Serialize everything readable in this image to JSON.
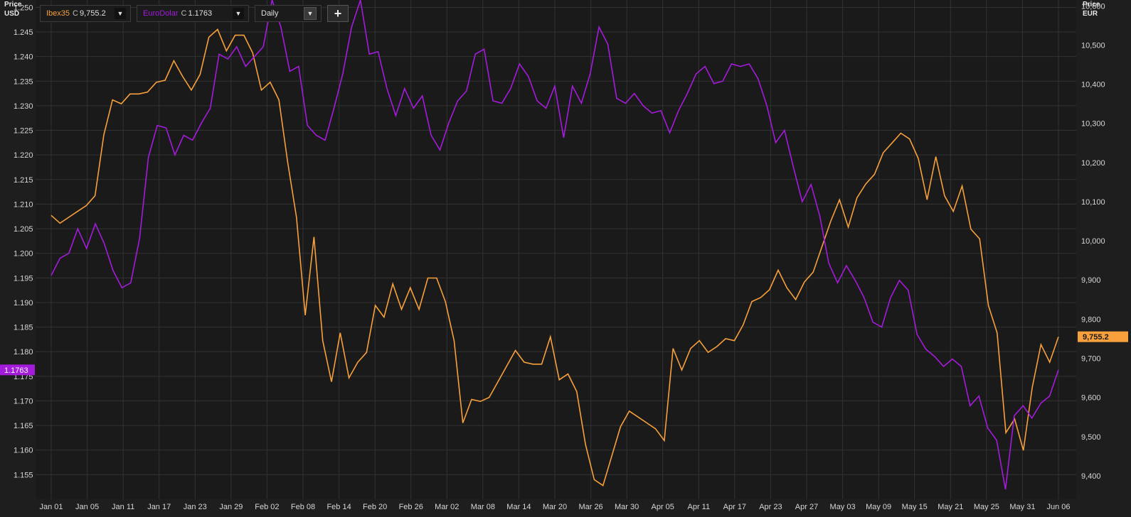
{
  "toolbar": {
    "series1": {
      "symbol": "Ibex35",
      "close_prefix": "C",
      "close_value": "9,755.2"
    },
    "series2": {
      "symbol": "EuroDolar",
      "close_prefix": "C",
      "close_value": "1.1763"
    },
    "period": "Daily",
    "add_label": "+"
  },
  "colors": {
    "ibex": "#f7a03c",
    "eurodolar": "#a41bdc",
    "background": "#1e1e1e",
    "grid": "#333333"
  },
  "chart_data": {
    "type": "line",
    "left_axis": {
      "title_line1": "Price",
      "title_line2": "USD",
      "ylim": [
        1.15,
        1.2515
      ],
      "ticks": [
        "1.250",
        "1.245",
        "1.240",
        "1.235",
        "1.230",
        "1.225",
        "1.220",
        "1.215",
        "1.210",
        "1.205",
        "1.200",
        "1.195",
        "1.190",
        "1.185",
        "1.180",
        "1.175",
        "1.170",
        "1.165",
        "1.160",
        "1.155"
      ]
    },
    "right_axis": {
      "title_line1": "Price",
      "title_line2": "EUR",
      "ylim": [
        9340,
        10615
      ],
      "ticks": [
        "10,600",
        "10,500",
        "10,400",
        "10,300",
        "10,200",
        "10,100",
        "10,000",
        "9,900",
        "9,800",
        "9,700",
        "9,600",
        "9,500",
        "9,400"
      ]
    },
    "x_ticks": [
      "Jan 01",
      "Jan 05",
      "Jan 11",
      "Jan 17",
      "Jan 23",
      "Jan 29",
      "Feb 02",
      "Feb 08",
      "Feb 14",
      "Feb 20",
      "Feb 26",
      "Mar 02",
      "Mar 08",
      "Mar 14",
      "Mar 20",
      "Mar 26",
      "Mar 30",
      "Apr 05",
      "Apr 11",
      "Apr 17",
      "Apr 23",
      "Apr 27",
      "May 03",
      "May 09",
      "May 15",
      "May 21",
      "May 25",
      "May 31",
      "Jun 06"
    ],
    "grid": true,
    "series": [
      {
        "name": "Ibex35",
        "axis": "right",
        "values": [
          10065,
          10045,
          10060,
          10075,
          10090,
          10115,
          10270,
          10360,
          10350,
          10375,
          10375,
          10380,
          10405,
          10410,
          10460,
          10420,
          10385,
          10425,
          10520,
          10540,
          10485,
          10525,
          10525,
          10480,
          10385,
          10405,
          10360,
          10200,
          10060,
          9810,
          10010,
          9745,
          9640,
          9765,
          9650,
          9690,
          9715,
          9835,
          9805,
          9890,
          9825,
          9880,
          9825,
          9905,
          9905,
          9845,
          9745,
          9535,
          9595,
          9590,
          9600,
          9640,
          9680,
          9720,
          9690,
          9685,
          9685,
          9755,
          9645,
          9660,
          9615,
          9480,
          9390,
          9375,
          9450,
          9525,
          9565,
          9550,
          9535,
          9520,
          9490,
          9725,
          9670,
          9725,
          9745,
          9715,
          9730,
          9750,
          9745,
          9785,
          9845,
          9855,
          9875,
          9925,
          9880,
          9850,
          9895,
          9920,
          9985,
          10050,
          10105,
          10035,
          10110,
          10145,
          10170,
          10225,
          10250,
          10275,
          10260,
          10210,
          10105,
          10215,
          10115,
          10075,
          10140,
          10030,
          10005,
          9835,
          9765,
          9510,
          9545,
          9465,
          9625,
          9735,
          9690,
          9755
        ]
      },
      {
        "name": "EuroDolar",
        "axis": "left",
        "values": [
          1.1955,
          1.199,
          1.2,
          1.205,
          1.201,
          1.206,
          1.202,
          1.1965,
          1.193,
          1.194,
          1.203,
          1.2195,
          1.226,
          1.2255,
          1.22,
          1.224,
          1.223,
          1.2265,
          1.2295,
          1.2405,
          1.2395,
          1.242,
          1.238,
          1.24,
          1.242,
          1.2515,
          1.246,
          1.237,
          1.238,
          1.226,
          1.224,
          1.223,
          1.2295,
          1.2365,
          1.246,
          1.2515,
          1.2405,
          1.241,
          1.2335,
          1.228,
          1.2335,
          1.2295,
          1.232,
          1.224,
          1.221,
          1.2265,
          1.231,
          1.233,
          1.2405,
          1.2415,
          1.231,
          1.2305,
          1.2335,
          1.2385,
          1.236,
          1.231,
          1.2295,
          1.234,
          1.2235,
          1.234,
          1.2305,
          1.2365,
          1.246,
          1.2425,
          1.2315,
          1.2305,
          1.2325,
          1.23,
          1.2285,
          1.229,
          1.2245,
          1.229,
          1.2325,
          1.2365,
          1.238,
          1.2345,
          1.235,
          1.2385,
          1.238,
          1.2385,
          1.2355,
          1.23,
          1.2225,
          1.225,
          1.2175,
          1.2105,
          1.214,
          1.2075,
          1.198,
          1.194,
          1.1975,
          1.1945,
          1.191,
          1.186,
          1.185,
          1.191,
          1.1945,
          1.1925,
          1.1835,
          1.1805,
          1.179,
          1.177,
          1.1785,
          1.177,
          1.169,
          1.171,
          1.1645,
          1.162,
          1.152,
          1.167,
          1.169,
          1.1665,
          1.1695,
          1.171,
          1.1763
        ]
      }
    ],
    "last_value_labels": {
      "right": "9,755.2",
      "left": "1.1763"
    }
  }
}
